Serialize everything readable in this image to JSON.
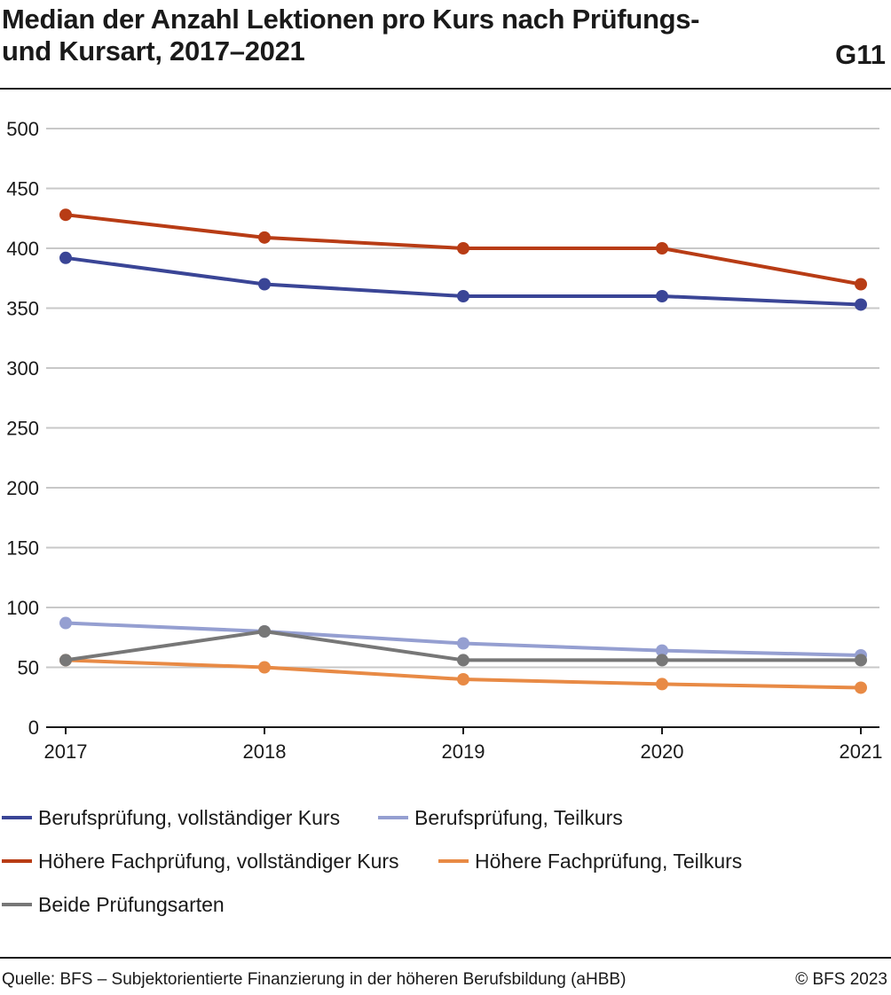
{
  "header": {
    "title_line1": "Median der Anzahl Lektionen pro Kurs nach Prüfungs-",
    "title_line2": "und Kursart, 2017–2021",
    "figure_id": "G11"
  },
  "footer": {
    "source": "Quelle: BFS – Subjektorientierte Finanzierung in der höheren Berufsbildung (aHBB)",
    "copyright": "© BFS 2023"
  },
  "chart_data": {
    "type": "line",
    "title": "Median der Anzahl Lektionen pro Kurs nach Prüfungs- und Kursart, 2017–2021",
    "xlabel": "",
    "ylabel": "",
    "x": [
      "2017",
      "2018",
      "2019",
      "2020",
      "2021"
    ],
    "ylim": [
      0,
      500
    ],
    "yticks": [
      0,
      50,
      100,
      150,
      200,
      250,
      300,
      350,
      400,
      450,
      500
    ],
    "grid": true,
    "legend_position": "bottom",
    "series": [
      {
        "name": "Berufsprüfung, vollständiger Kurs",
        "color": "#3a4596",
        "values": [
          392,
          370,
          360,
          360,
          353
        ]
      },
      {
        "name": "Berufsprüfung, Teilkurs",
        "color": "#959fd1",
        "values": [
          87,
          80,
          70,
          64,
          60
        ]
      },
      {
        "name": "Höhere Fachprüfung, vollständiger Kurs",
        "color": "#b83c15",
        "values": [
          428,
          409,
          400,
          400,
          370
        ]
      },
      {
        "name": "Höhere Fachprüfung, Teilkurs",
        "color": "#e88a45",
        "values": [
          56,
          50,
          40,
          36,
          33
        ]
      },
      {
        "name": "Beide Prüfungsarten",
        "color": "#777777",
        "values": [
          56,
          80,
          56,
          56,
          56
        ]
      }
    ]
  }
}
